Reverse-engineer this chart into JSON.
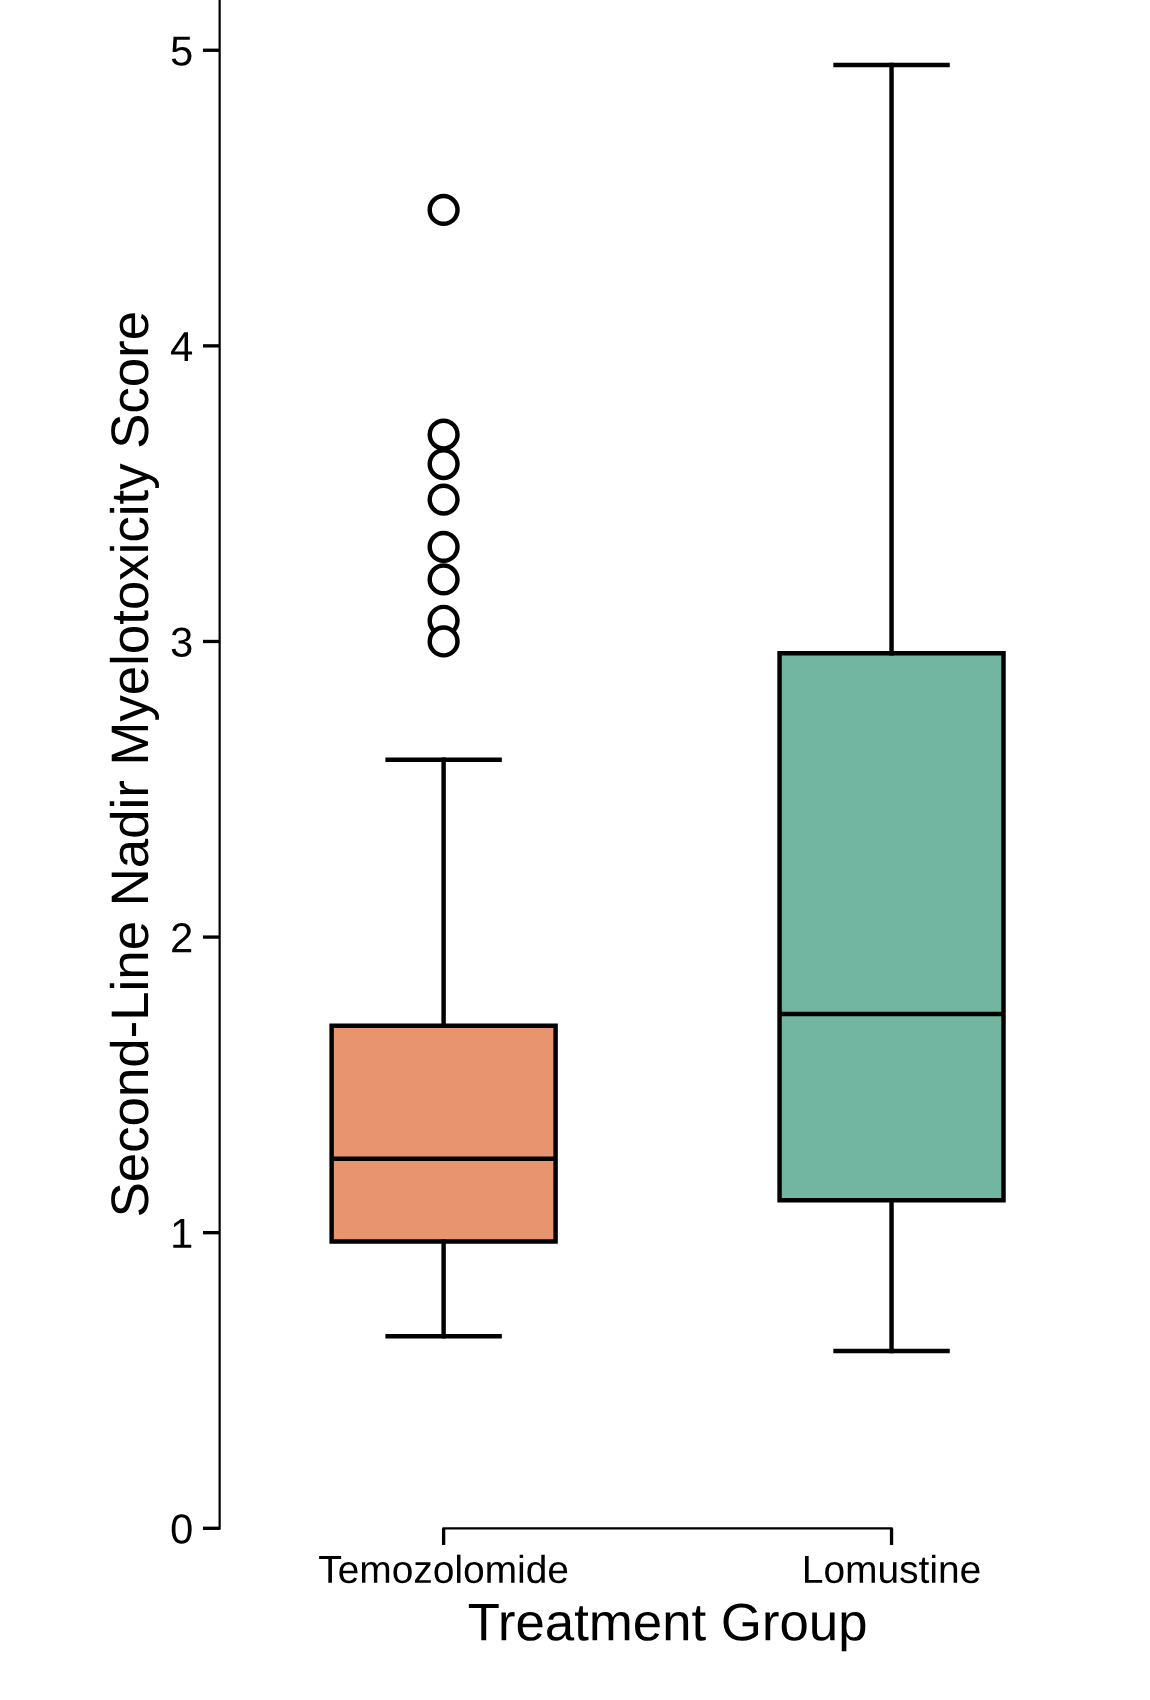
{
  "chart_data": {
    "type": "box",
    "xlabel": "Treatment Group",
    "ylabel": "Second-Line Nadir Myelotoxicity Score",
    "categories": [
      "Temozolomide",
      "Lomustine"
    ],
    "colors": [
      "#e8956f",
      "#72b5a0"
    ],
    "boxes": [
      {
        "low": 0.65,
        "q1": 0.97,
        "median": 1.25,
        "q3": 1.7,
        "high": 2.6,
        "outliers": [
          4.46,
          3.7,
          3.6,
          3.48,
          3.32,
          3.21,
          3.07,
          3.0
        ]
      },
      {
        "low": 0.6,
        "q1": 1.11,
        "median": 1.74,
        "q3": 2.96,
        "high": 4.95
      }
    ],
    "ylim": [
      0,
      5.17
    ],
    "yticks": [
      0,
      1,
      2,
      3,
      4,
      5
    ],
    "grid": false,
    "legend": false
  }
}
